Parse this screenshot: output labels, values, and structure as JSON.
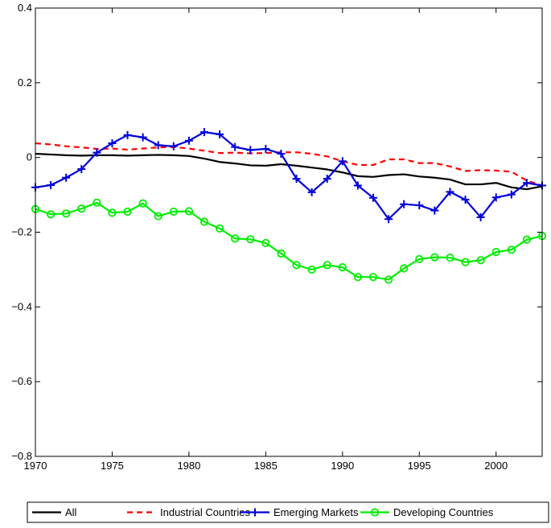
{
  "chart_data": {
    "type": "line",
    "title": "",
    "xlabel": "",
    "ylabel": "",
    "xlim": [
      1970,
      2003
    ],
    "ylim": [
      -0.8,
      0.4
    ],
    "xticks": [
      1970,
      1975,
      1980,
      1985,
      1990,
      1995,
      2000
    ],
    "yticks": [
      -0.8,
      -0.6,
      -0.4,
      -0.2,
      0,
      0.2,
      0.4
    ],
    "xtick_labels": [
      "1970",
      "1975",
      "1980",
      "1985",
      "1990",
      "1995",
      "2000"
    ],
    "ytick_labels": [
      "−0.8",
      "−0.6",
      "−0.4",
      "−0.2",
      "0",
      "0.2",
      "0.4"
    ],
    "grid": false,
    "legend_position": "bottom",
    "x": [
      1970,
      1971,
      1972,
      1973,
      1974,
      1975,
      1976,
      1977,
      1978,
      1979,
      1980,
      1981,
      1982,
      1983,
      1984,
      1985,
      1986,
      1987,
      1988,
      1989,
      1990,
      1991,
      1992,
      1993,
      1994,
      1995,
      1996,
      1997,
      1998,
      1999,
      2000,
      2001,
      2002,
      2003
    ],
    "series": [
      {
        "name": "All",
        "color": "#000000",
        "style": "solid",
        "marker": "none",
        "values": [
          0.01,
          0.008,
          0.006,
          0.005,
          0.006,
          0.006,
          0.005,
          0.006,
          0.007,
          0.006,
          0.004,
          -0.003,
          -0.012,
          -0.016,
          -0.021,
          -0.022,
          -0.018,
          -0.022,
          -0.027,
          -0.032,
          -0.04,
          -0.05,
          -0.052,
          -0.047,
          -0.045,
          -0.051,
          -0.054,
          -0.059,
          -0.072,
          -0.072,
          -0.068,
          -0.08,
          -0.085,
          -0.077
        ]
      },
      {
        "name": "Industrial Countries",
        "color": "#ff0000",
        "style": "dashed",
        "marker": "none",
        "values": [
          0.038,
          0.035,
          0.03,
          0.027,
          0.023,
          0.024,
          0.021,
          0.024,
          0.027,
          0.028,
          0.024,
          0.018,
          0.012,
          0.013,
          0.011,
          0.012,
          0.014,
          0.014,
          0.01,
          0.003,
          -0.01,
          -0.02,
          -0.02,
          -0.005,
          -0.005,
          -0.015,
          -0.015,
          -0.024,
          -0.036,
          -0.034,
          -0.035,
          -0.038,
          -0.062,
          -0.075
        ]
      },
      {
        "name": "Emerging Markets",
        "color": "#0000dd",
        "style": "solid",
        "marker": "plus",
        "values": [
          -0.08,
          -0.074,
          -0.054,
          -0.031,
          0.013,
          0.038,
          0.06,
          0.054,
          0.033,
          0.03,
          0.045,
          0.068,
          0.062,
          0.028,
          0.02,
          0.023,
          0.01,
          -0.057,
          -0.093,
          -0.057,
          -0.01,
          -0.075,
          -0.108,
          -0.165,
          -0.125,
          -0.128,
          -0.142,
          -0.092,
          -0.113,
          -0.16,
          -0.107,
          -0.099,
          -0.068,
          -0.075
        ]
      },
      {
        "name": "Developing Countries",
        "color": "#00ee00",
        "style": "solid",
        "marker": "circle",
        "values": [
          -0.138,
          -0.152,
          -0.15,
          -0.137,
          -0.121,
          -0.148,
          -0.145,
          -0.123,
          -0.157,
          -0.145,
          -0.144,
          -0.172,
          -0.19,
          -0.217,
          -0.219,
          -0.229,
          -0.257,
          -0.288,
          -0.3,
          -0.288,
          -0.294,
          -0.32,
          -0.32,
          -0.327,
          -0.297,
          -0.272,
          -0.267,
          -0.268,
          -0.28,
          -0.275,
          -0.253,
          -0.247,
          -0.22,
          -0.21
        ]
      }
    ]
  }
}
